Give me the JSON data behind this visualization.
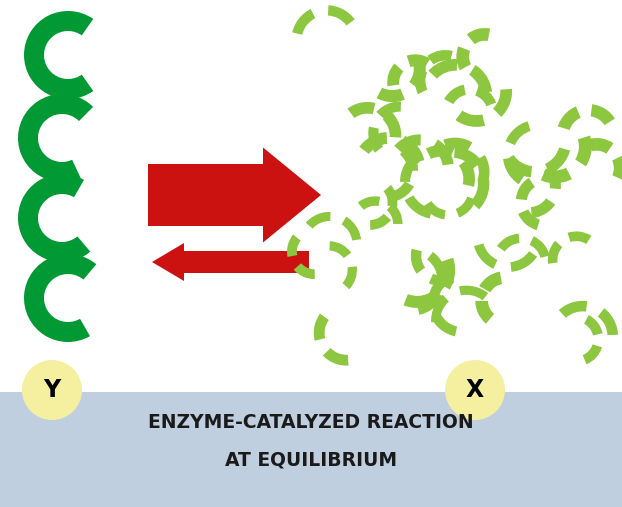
{
  "bg_color": "#ffffff",
  "banner_color": "#bfcfdf",
  "banner_text_line1": "ENZYME-CATALYZED REACTION",
  "banner_text_line2": "AT EQUILIBRIUM",
  "banner_text_color": "#1a1a1a",
  "dark_green": "#009933",
  "light_green": "#8dc63f",
  "red_color": "#cc1111",
  "yellow_color": "#f5f0a0",
  "label_y": "Y",
  "label_x": "X",
  "fig_w": 6.22,
  "fig_h": 5.07,
  "dpi": 100
}
